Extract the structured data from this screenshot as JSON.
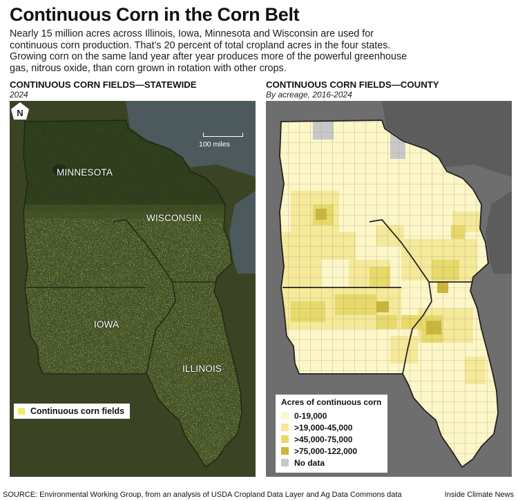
{
  "header": {
    "title": "Continuous Corn in the Corn Belt",
    "subtitle": "Nearly 15 million acres across Illinois, Iowa, Minnesota and Wisconsin are used for continuous corn production. That’s 20 percent of total cropland acres in the four states. Growing corn on the same land year after year produces more of the powerful greenhouse gas, nitrous oxide, than corn grown in rotation with other crops."
  },
  "left_panel": {
    "title": "CONTINUOUS CORN FIELDS—STATEWIDE",
    "subtitle": "2024",
    "state_labels": [
      "MINNESOTA",
      "WISCONSIN",
      "IOWA",
      "ILLINOIS"
    ],
    "north_icon": "north-arrow-icon",
    "north_letter": "N",
    "scale_label": "100 miles",
    "legend": {
      "label": "Continuous corn fields",
      "color": "#f3ec6a"
    }
  },
  "right_panel": {
    "title": "CONTINUOUS CORN FIELDS—COUNTY",
    "subtitle": "By acreage, 2016-2024",
    "legend": {
      "title": "Acres of continuous corn",
      "items": [
        {
          "label": "0-19,000",
          "color": "#fdf6c8"
        },
        {
          "label": ">19,000-45,000",
          "color": "#f5e99a"
        },
        {
          "label": ">45,000-75,000",
          "color": "#e7d96a"
        },
        {
          "label": ">75,000-122,000",
          "color": "#c9b73c"
        },
        {
          "label": "No data",
          "color": "#c8c8c8"
        }
      ]
    }
  },
  "footer": {
    "source": "SOURCE: Environmental Working Group, from an analysis of USDA Cropland Data Layer and Ag Data Commons data",
    "credit": "Inside Climate News"
  },
  "colors": {
    "satellite_dark": "#3a4a22",
    "lake": "#4a5a60",
    "right_bg": "#6f6f6f",
    "border": "#2a2a2a"
  }
}
